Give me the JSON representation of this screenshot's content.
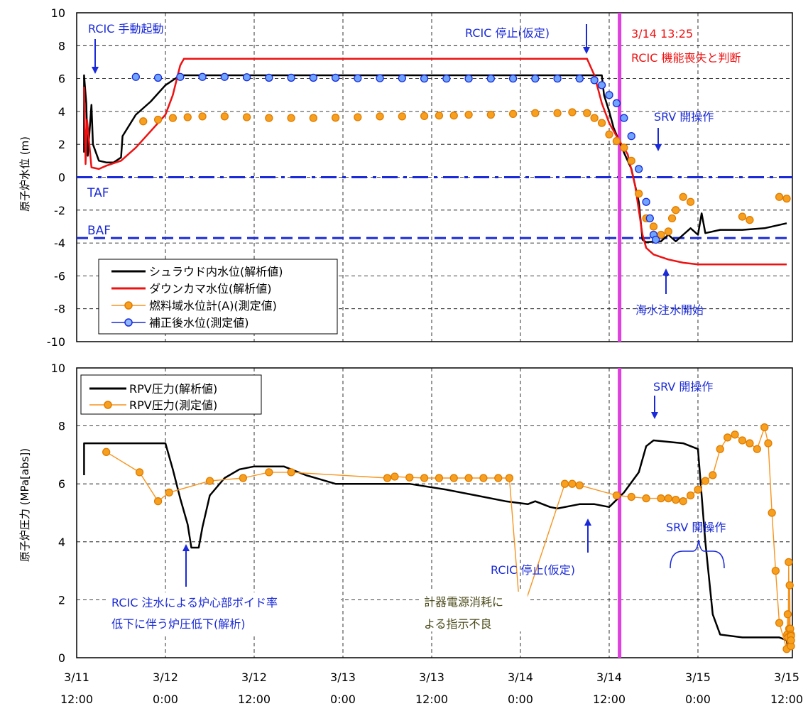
{
  "colors": {
    "black": "#000000",
    "red": "#ee1111",
    "orange": "#f7941d",
    "orange_line": "#f7941d",
    "blue": "#1a2ad8",
    "blue_fill": "#6fa4ff",
    "blue_dash": "#1a2ad8",
    "magenta": "#e040e0",
    "grid": "#000000",
    "annotation_blue": "#1a2ad8",
    "annotation_red": "#ee1111",
    "annotation_olive": "#4a4a1a"
  },
  "x_ticks": [
    {
      "date": "3/11",
      "time": "12:00"
    },
    {
      "date": "3/12",
      "time": "0:00"
    },
    {
      "date": "3/12",
      "time": "12:00"
    },
    {
      "date": "3/13",
      "time": "0:00"
    },
    {
      "date": "3/13",
      "time": "12:00"
    },
    {
      "date": "3/14",
      "time": "0:00"
    },
    {
      "date": "3/14",
      "time": "12:00"
    },
    {
      "date": "3/15",
      "time": "0:00"
    },
    {
      "date": "3/15",
      "time": "12:00"
    }
  ],
  "top_annotations": {
    "rcic_start": "RCIC 手動起動",
    "rcic_stop": "RCIC 停止(仮定)",
    "rcic_loss_1": "3/14 13:25",
    "rcic_loss_2": "RCIC 機能喪失と判断",
    "srv_open": "SRV 開操作",
    "seawater": "海水注水開始",
    "taf": "TAF",
    "baf": "BAF"
  },
  "bottom_annotations": {
    "srv_open_1": "SRV 開操作",
    "srv_open_2": "SRV 開操作",
    "rcic_stop": "RCIC 停止(仮定)",
    "rcic_void_1": "RCIC 注水による炉心部ボイド率",
    "rcic_void_2": "低下に伴う炉圧低下(解析)",
    "power_1": "計器電源消耗に",
    "power_2": "よる指示不良"
  },
  "chart_data": [
    {
      "type": "line",
      "ylabel": "原子炉水位 (m)",
      "ylim": [
        -10,
        10
      ],
      "xlim_hours": [
        0,
        96
      ],
      "y_ticks": [
        10,
        8,
        6,
        4,
        2,
        0,
        -2,
        -4,
        -6,
        -8,
        -10
      ],
      "grid": true,
      "reference_lines": [
        {
          "name": "TAF",
          "y": 0
        },
        {
          "name": "BAF",
          "y": -3.7
        }
      ],
      "event_line_hour": 73.4,
      "legend_position": "bottom-left",
      "series": [
        {
          "name": "シュラウド内水位(解析値)",
          "style": "line",
          "color": "black",
          "points": [
            [
              1,
              1.5
            ],
            [
              1,
              6.2
            ],
            [
              1.3,
              4.5
            ],
            [
              1.5,
              1.3
            ],
            [
              2,
              4.4
            ],
            [
              2.2,
              2
            ],
            [
              3,
              1
            ],
            [
              4,
              0.9
            ],
            [
              5,
              0.9
            ],
            [
              6,
              1.2
            ],
            [
              6.2,
              2.5
            ],
            [
              8,
              3.8
            ],
            [
              10,
              4.6
            ],
            [
              12,
              5.6
            ],
            [
              14,
              6.2
            ],
            [
              16,
              6.2
            ],
            [
              30,
              6.2
            ],
            [
              40,
              6.2
            ],
            [
              50,
              6.2
            ],
            [
              60,
              6.2
            ],
            [
              70,
              6.2
            ],
            [
              71,
              6.2
            ],
            [
              71.3,
              5
            ],
            [
              72,
              4
            ],
            [
              72.6,
              3
            ],
            [
              74,
              1.5
            ],
            [
              75,
              0.5
            ],
            [
              76,
              -1.5
            ],
            [
              76.5,
              -3.8
            ],
            [
              77,
              -3.95
            ],
            [
              79,
              -3.9
            ],
            [
              80,
              -3.5
            ],
            [
              81,
              -3.9
            ],
            [
              82,
              -3.5
            ],
            [
              83,
              -3.1
            ],
            [
              84,
              -3.5
            ],
            [
              84.5,
              -2.2
            ],
            [
              85,
              -3.4
            ],
            [
              87,
              -3.2
            ],
            [
              90,
              -3.2
            ],
            [
              93,
              -3.1
            ],
            [
              96,
              -2.8
            ]
          ]
        },
        {
          "name": "ダウンカマ水位(解析値)",
          "style": "line",
          "color": "red",
          "points": [
            [
              1,
              5.5
            ],
            [
              1.2,
              0.8
            ],
            [
              1.4,
              3.5
            ],
            [
              2,
              0.6
            ],
            [
              3,
              0.5
            ],
            [
              4,
              0.7
            ],
            [
              6,
              1
            ],
            [
              8,
              1.8
            ],
            [
              10,
              2.8
            ],
            [
              12,
              3.8
            ],
            [
              13,
              5
            ],
            [
              14,
              6.8
            ],
            [
              14.5,
              7.2
            ],
            [
              20,
              7.2
            ],
            [
              30,
              7.2
            ],
            [
              40,
              7.2
            ],
            [
              50,
              7.2
            ],
            [
              60,
              7.2
            ],
            [
              69,
              7.2
            ],
            [
              70,
              6.2
            ],
            [
              71,
              4.5
            ],
            [
              72,
              3.3
            ],
            [
              73,
              2.5
            ],
            [
              74.5,
              1.4
            ],
            [
              75.5,
              -0.5
            ],
            [
              76.5,
              -3.5
            ],
            [
              77,
              -4.3
            ],
            [
              78,
              -4.7
            ],
            [
              80,
              -5
            ],
            [
              82,
              -5.2
            ],
            [
              84,
              -5.3
            ],
            [
              90,
              -5.3
            ],
            [
              96,
              -5.3
            ]
          ]
        },
        {
          "name": "燃料域水位計(A)(測定値)",
          "style": "markers",
          "color": "orange",
          "points": [
            [
              9,
              3.4
            ],
            [
              11,
              3.5
            ],
            [
              13,
              3.6
            ],
            [
              15,
              3.65
            ],
            [
              17,
              3.7
            ],
            [
              20,
              3.7
            ],
            [
              23,
              3.65
            ],
            [
              26,
              3.6
            ],
            [
              29,
              3.6
            ],
            [
              32,
              3.6
            ],
            [
              35,
              3.62
            ],
            [
              38,
              3.65
            ],
            [
              41,
              3.7
            ],
            [
              44,
              3.7
            ],
            [
              47,
              3.72
            ],
            [
              49,
              3.75
            ],
            [
              51,
              3.75
            ],
            [
              53,
              3.8
            ],
            [
              56,
              3.8
            ],
            [
              59,
              3.85
            ],
            [
              62,
              3.9
            ],
            [
              65,
              3.9
            ],
            [
              67,
              3.95
            ],
            [
              69,
              3.9
            ],
            [
              70,
              3.6
            ],
            [
              71,
              3.3
            ],
            [
              72,
              2.6
            ],
            [
              73,
              2.2
            ],
            [
              74,
              1.8
            ],
            [
              75,
              1
            ],
            [
              76,
              -1
            ],
            [
              77,
              -2.5
            ],
            [
              78,
              -3
            ],
            [
              79,
              -3.5
            ],
            [
              80,
              -3.3
            ],
            [
              80.5,
              -2.5
            ],
            [
              81,
              -2
            ],
            [
              82,
              -1.2
            ],
            [
              83,
              -1.5
            ],
            [
              90,
              -2.4
            ],
            [
              91,
              -2.6
            ],
            [
              95,
              -1.2
            ],
            [
              96,
              -1.3
            ]
          ]
        },
        {
          "name": "補正後水位(測定値)",
          "style": "markers",
          "color": "blue",
          "points": [
            [
              8,
              6.1
            ],
            [
              11,
              6.05
            ],
            [
              14,
              6.1
            ],
            [
              17,
              6.1
            ],
            [
              20,
              6.1
            ],
            [
              23,
              6.08
            ],
            [
              26,
              6.05
            ],
            [
              29,
              6.05
            ],
            [
              32,
              6.05
            ],
            [
              35,
              6.05
            ],
            [
              38,
              6.02
            ],
            [
              41,
              6.02
            ],
            [
              44,
              6.02
            ],
            [
              47,
              6.0
            ],
            [
              50,
              6.0
            ],
            [
              53,
              6.0
            ],
            [
              56,
              6.0
            ],
            [
              59,
              6.0
            ],
            [
              62,
              6.0
            ],
            [
              65,
              6.0
            ],
            [
              68,
              6.0
            ],
            [
              70,
              5.9
            ],
            [
              71,
              5.6
            ],
            [
              72,
              5.0
            ],
            [
              73,
              4.5
            ],
            [
              74,
              3.6
            ],
            [
              75,
              2.5
            ],
            [
              76,
              0.5
            ],
            [
              77,
              -1.5
            ],
            [
              77.5,
              -2.5
            ],
            [
              78,
              -3.5
            ],
            [
              78.3,
              -3.8
            ]
          ]
        }
      ]
    },
    {
      "type": "line",
      "ylabel": "原子炉圧力 (MPa[abs])",
      "ylim": [
        0,
        10
      ],
      "xlim_hours": [
        0,
        96
      ],
      "y_ticks": [
        10,
        8,
        6,
        4,
        2,
        0
      ],
      "grid": true,
      "event_line_hour": 73.4,
      "legend_position": "top-left",
      "series": [
        {
          "name": "RPV圧力(解析値)",
          "style": "line",
          "color": "black",
          "points": [
            [
              1,
              6.3
            ],
            [
              1,
              7.4
            ],
            [
              4,
              7.4
            ],
            [
              8,
              7.4
            ],
            [
              11,
              7.4
            ],
            [
              12,
              7.4
            ],
            [
              13,
              6.5
            ],
            [
              14,
              5.5
            ],
            [
              15,
              4.6
            ],
            [
              15.5,
              3.8
            ],
            [
              16.5,
              3.8
            ],
            [
              17,
              4.5
            ],
            [
              18,
              5.6
            ],
            [
              20,
              6.2
            ],
            [
              22,
              6.5
            ],
            [
              24,
              6.6
            ],
            [
              28,
              6.6
            ],
            [
              29,
              6.5
            ],
            [
              31,
              6.3
            ],
            [
              33,
              6.15
            ],
            [
              35,
              6.0
            ],
            [
              40,
              6.0
            ],
            [
              45,
              6.0
            ],
            [
              50,
              5.8
            ],
            [
              54,
              5.6
            ],
            [
              58,
              5.4
            ],
            [
              61,
              5.3
            ],
            [
              62,
              5.4
            ],
            [
              64,
              5.2
            ],
            [
              65,
              5.15
            ],
            [
              68,
              5.3
            ],
            [
              70,
              5.3
            ],
            [
              71,
              5.25
            ],
            [
              72,
              5.2
            ],
            [
              74,
              5.7
            ],
            [
              76,
              6.4
            ],
            [
              77,
              7.3
            ],
            [
              78,
              7.5
            ],
            [
              82,
              7.4
            ],
            [
              84,
              7.2
            ],
            [
              85,
              4
            ],
            [
              86,
              1.5
            ],
            [
              87,
              0.8
            ],
            [
              90,
              0.7
            ],
            [
              95,
              0.7
            ],
            [
              96,
              0.6
            ],
            [
              97,
              0.4
            ],
            [
              100,
              0.35
            ]
          ]
        },
        {
          "name": "RPV圧力(測定値)",
          "style": "markers+line",
          "color": "orange",
          "points": [
            [
              4,
              7.1
            ],
            [
              8.5,
              6.4
            ],
            [
              11,
              5.4
            ],
            [
              12.5,
              5.7
            ],
            [
              18,
              6.1
            ],
            [
              22.5,
              6.2
            ],
            [
              26,
              6.4
            ],
            [
              29,
              6.4
            ],
            [
              42,
              6.2
            ],
            [
              43,
              6.25
            ],
            [
              45,
              6.22
            ],
            [
              47,
              6.2
            ],
            [
              49,
              6.2
            ],
            [
              51,
              6.2
            ],
            [
              53,
              6.2
            ],
            [
              55,
              6.2
            ],
            [
              57,
              6.2
            ],
            [
              58.5,
              6.2
            ],
            [
              60,
              1.4
            ],
            [
              66,
              6.0
            ],
            [
              67,
              6.0
            ],
            [
              68,
              5.95
            ],
            [
              73,
              5.6
            ],
            [
              75,
              5.55
            ],
            [
              77,
              5.5
            ],
            [
              79,
              5.5
            ],
            [
              80,
              5.5
            ],
            [
              81,
              5.45
            ],
            [
              82,
              5.4
            ],
            [
              83,
              5.6
            ],
            [
              84,
              5.8
            ],
            [
              85,
              6.1
            ],
            [
              86,
              6.3
            ],
            [
              87,
              7.2
            ],
            [
              88,
              7.6
            ],
            [
              89,
              7.7
            ],
            [
              90,
              7.5
            ],
            [
              91,
              7.4
            ],
            [
              92,
              7.2
            ],
            [
              93,
              7.95
            ],
            [
              93.5,
              7.4
            ],
            [
              94,
              5
            ],
            [
              94.5,
              3
            ],
            [
              95,
              1.2
            ],
            [
              96,
              0.3
            ],
            [
              97,
              0.8
            ],
            [
              98,
              1.5
            ],
            [
              99,
              0.7
            ],
            [
              100,
              3.3
            ],
            [
              101,
              1
            ],
            [
              102,
              2.5
            ],
            [
              103,
              1
            ],
            [
              104,
              0.8
            ],
            [
              106,
              0.8
            ],
            [
              108,
              0.75
            ],
            [
              110,
              0.6
            ],
            [
              112,
              0.4
            ],
            [
              113,
              0.6
            ]
          ]
        }
      ]
    }
  ]
}
